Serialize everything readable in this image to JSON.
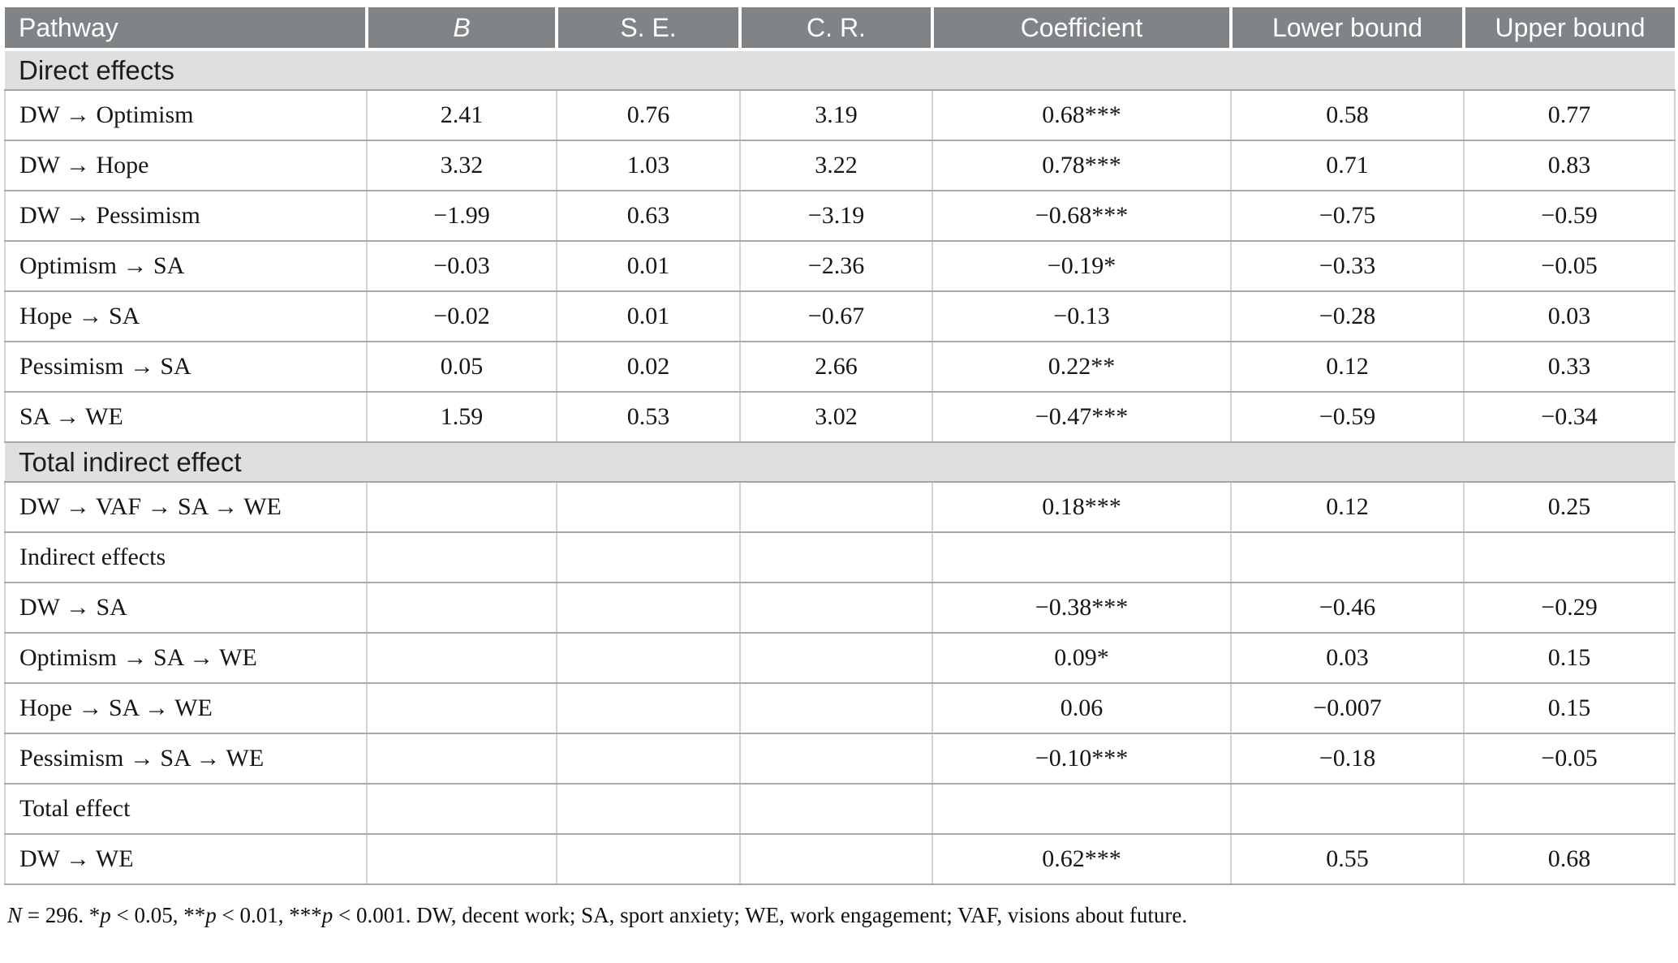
{
  "table": {
    "columns": [
      {
        "key": "pathway",
        "label": "Pathway",
        "align": "left",
        "italic": false
      },
      {
        "key": "b",
        "label": "B",
        "align": "center",
        "italic": true
      },
      {
        "key": "se",
        "label": "S. E.",
        "align": "center",
        "italic": false
      },
      {
        "key": "cr",
        "label": "C. R.",
        "align": "center",
        "italic": false
      },
      {
        "key": "coef",
        "label": "Coefficient",
        "align": "center",
        "italic": false
      },
      {
        "key": "lower",
        "label": "Lower bound",
        "align": "center",
        "italic": false
      },
      {
        "key": "upper",
        "label": "Upper bound",
        "align": "center",
        "italic": false
      }
    ],
    "rows": [
      {
        "type": "section",
        "label": "Direct effects"
      },
      {
        "type": "data",
        "cells": [
          "DW → Optimism",
          "2.41",
          "0.76",
          "3.19",
          "0.68***",
          "0.58",
          "0.77"
        ]
      },
      {
        "type": "data",
        "cells": [
          "DW → Hope",
          "3.32",
          "1.03",
          "3.22",
          "0.78***",
          "0.71",
          "0.83"
        ]
      },
      {
        "type": "data",
        "cells": [
          "DW → Pessimism",
          "−1.99",
          "0.63",
          "−3.19",
          "−0.68***",
          "−0.75",
          "−0.59"
        ]
      },
      {
        "type": "data",
        "cells": [
          "Optimism → SA",
          "−0.03",
          "0.01",
          "−2.36",
          "−0.19*",
          "−0.33",
          "−0.05"
        ]
      },
      {
        "type": "data",
        "cells": [
          "Hope → SA",
          "−0.02",
          "0.01",
          "−0.67",
          "−0.13",
          "−0.28",
          "0.03"
        ]
      },
      {
        "type": "data",
        "cells": [
          "Pessimism → SA",
          "0.05",
          "0.02",
          "2.66",
          "0.22**",
          "0.12",
          "0.33"
        ]
      },
      {
        "type": "data",
        "cells": [
          "SA → WE",
          "1.59",
          "0.53",
          "3.02",
          "−0.47***",
          "−0.59",
          "−0.34"
        ]
      },
      {
        "type": "section",
        "label": "Total indirect effect"
      },
      {
        "type": "data",
        "cells": [
          "DW → VAF → SA → WE",
          "",
          "",
          "",
          "0.18***",
          "0.12",
          "0.25"
        ]
      },
      {
        "type": "data",
        "cells": [
          "Indirect effects",
          "",
          "",
          "",
          "",
          "",
          ""
        ]
      },
      {
        "type": "data",
        "cells": [
          "DW → SA",
          "",
          "",
          "",
          "−0.38***",
          "−0.46",
          "−0.29"
        ]
      },
      {
        "type": "data",
        "cells": [
          "Optimism → SA → WE",
          "",
          "",
          "",
          "0.09*",
          "0.03",
          "0.15"
        ]
      },
      {
        "type": "data",
        "cells": [
          "Hope → SA → WE",
          "",
          "",
          "",
          "0.06",
          "−0.007",
          "0.15"
        ]
      },
      {
        "type": "data",
        "cells": [
          "Pessimism → SA → WE",
          "",
          "",
          "",
          "−0.10***",
          "−0.18",
          "−0.05"
        ]
      },
      {
        "type": "data",
        "cells": [
          "Total effect",
          "",
          "",
          "",
          "",
          "",
          ""
        ]
      },
      {
        "type": "data",
        "cells": [
          "DW → WE",
          "",
          "",
          "",
          "0.62***",
          "0.55",
          "0.68"
        ]
      }
    ]
  },
  "footnote": {
    "segments": [
      {
        "text": "N",
        "italic": true
      },
      {
        "text": " = 296. *",
        "italic": false
      },
      {
        "text": "p",
        "italic": true
      },
      {
        "text": " < 0.05, **",
        "italic": false
      },
      {
        "text": "p",
        "italic": true
      },
      {
        "text": " < 0.01, ***",
        "italic": false
      },
      {
        "text": "p",
        "italic": true
      },
      {
        "text": " < 0.001. DW, decent work; SA, sport anxiety; WE, work engagement; VAF, visions about future.",
        "italic": false
      }
    ]
  },
  "colors": {
    "header_bg": "#808486",
    "header_text": "#ffffff",
    "section_bg": "#e0dfdf",
    "row_border": "#a9a9a9",
    "column_border": "#d4d4d4"
  }
}
